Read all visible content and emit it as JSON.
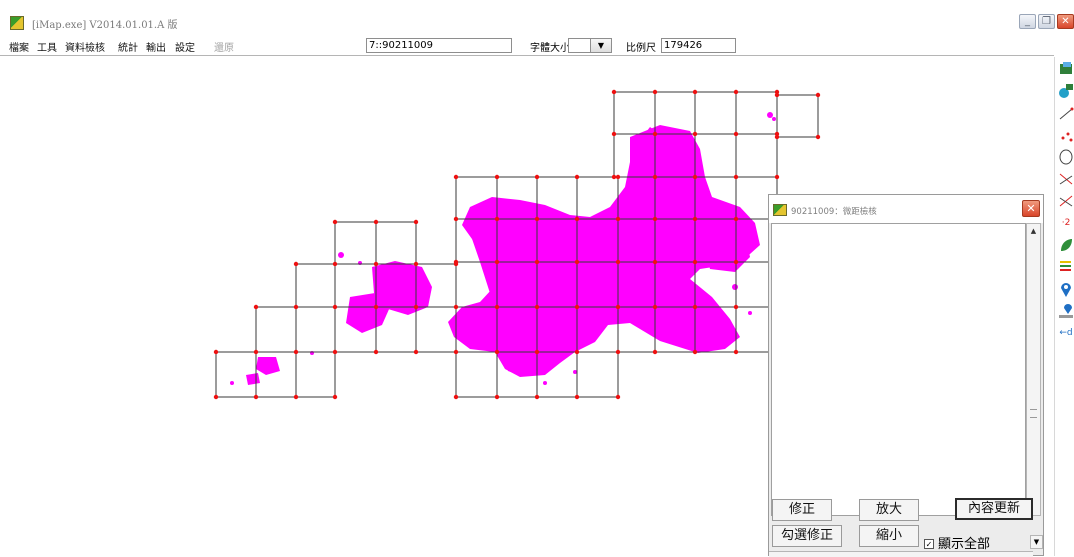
{
  "window": {
    "title": "[iMap.exe] V2014.01.01.A 版"
  },
  "menu": {
    "items": [
      "檔案",
      "工具",
      "資料檢核",
      "統計",
      "輸出",
      "設定",
      "還原"
    ]
  },
  "toolbar": {
    "map_id": "7::90211009",
    "font_size_label": "字體大小",
    "font_size_value": "",
    "scale_label": "比例尺",
    "scale_value": "179426"
  },
  "panel": {
    "title": "90211009：微距檢核",
    "buttons": {
      "fix": "修正",
      "zoom_in": "放大",
      "refresh": "內容更新",
      "checked_fix": "勾選修正",
      "zoom_out": "縮小"
    },
    "show_all_label": "顯示全部",
    "show_all_checked": true
  },
  "right_tools": [
    "layer-tool-icon",
    "merge-tool-icon",
    "line-tool-icon",
    "point-tool-icon",
    "lasso-tool-icon",
    "cross-line-icon",
    "cross-line-alt-icon",
    "number-label-icon",
    "leaf-icon",
    "legend-icon",
    "map-pin-icon",
    "map-pin-list-icon",
    "measure-distance-icon"
  ],
  "colors": {
    "map_fill": "#ff00ff",
    "grid_line": "#3a3a3a",
    "grid_node": "#ee1111"
  }
}
